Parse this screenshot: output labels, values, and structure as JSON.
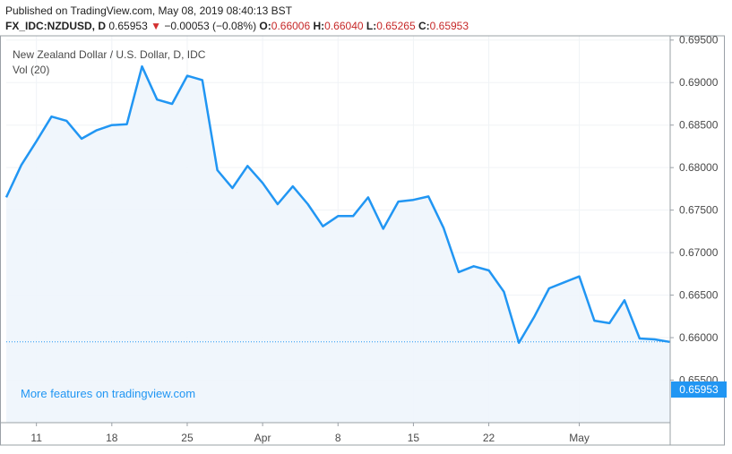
{
  "header": {
    "published": "Published on TradingView.com, May 08, 2019 08:40:13 BST",
    "symbol": "FX_IDC:NZDUSD, D",
    "last": "0.65953",
    "change_arrow": "▼",
    "change": "−0.00053 (−0.08%)",
    "o_label": "O:",
    "o_value": "0.66006",
    "h_label": "H:",
    "h_value": "0.66040",
    "l_label": "L:",
    "l_value": "0.65265",
    "c_label": "C:",
    "c_value": "0.65953"
  },
  "legend": {
    "series_title": "New Zealand Dollar / U.S. Dollar, D, IDC",
    "vol_title": "Vol (20)"
  },
  "promo_text": "More features on tradingview.com",
  "last_price_label": "0.65953",
  "colors": {
    "line": "#2196f3",
    "fill": "#eef5fc",
    "down": "#d32f2f",
    "ohlc": "#c62828"
  },
  "chart_data": {
    "type": "area",
    "title": "New Zealand Dollar / U.S. Dollar, D, IDC",
    "xlabel": "",
    "ylabel": "",
    "ylim": [
      0.65,
      0.6955
    ],
    "y_ticks": [
      "0.65500",
      "0.66000",
      "0.66500",
      "0.67000",
      "0.67500",
      "0.68000",
      "0.68500",
      "0.69000",
      "0.69500"
    ],
    "x_ticks": [
      "11",
      "18",
      "25",
      "Apr",
      "8",
      "15",
      "22",
      "May"
    ],
    "grid": true,
    "series": [
      {
        "values": [
          0.6765,
          0.6803,
          0.6831,
          0.686,
          0.6855,
          0.6834,
          0.6844,
          0.685,
          0.6851,
          0.6919,
          0.688,
          0.6875,
          0.6908,
          0.6903,
          0.6797,
          0.6776,
          0.6802,
          0.6782,
          0.6757,
          0.6778,
          0.6757,
          0.6731,
          0.6743,
          0.6743,
          0.6765,
          0.6728,
          0.676,
          0.6762,
          0.6766,
          0.6729,
          0.6677,
          0.6684,
          0.6679,
          0.6654,
          0.6594,
          0.6624,
          0.6658,
          0.6665,
          0.6672,
          0.662,
          0.6617,
          0.6644,
          0.6599,
          0.6598,
          0.6595
        ]
      }
    ]
  }
}
